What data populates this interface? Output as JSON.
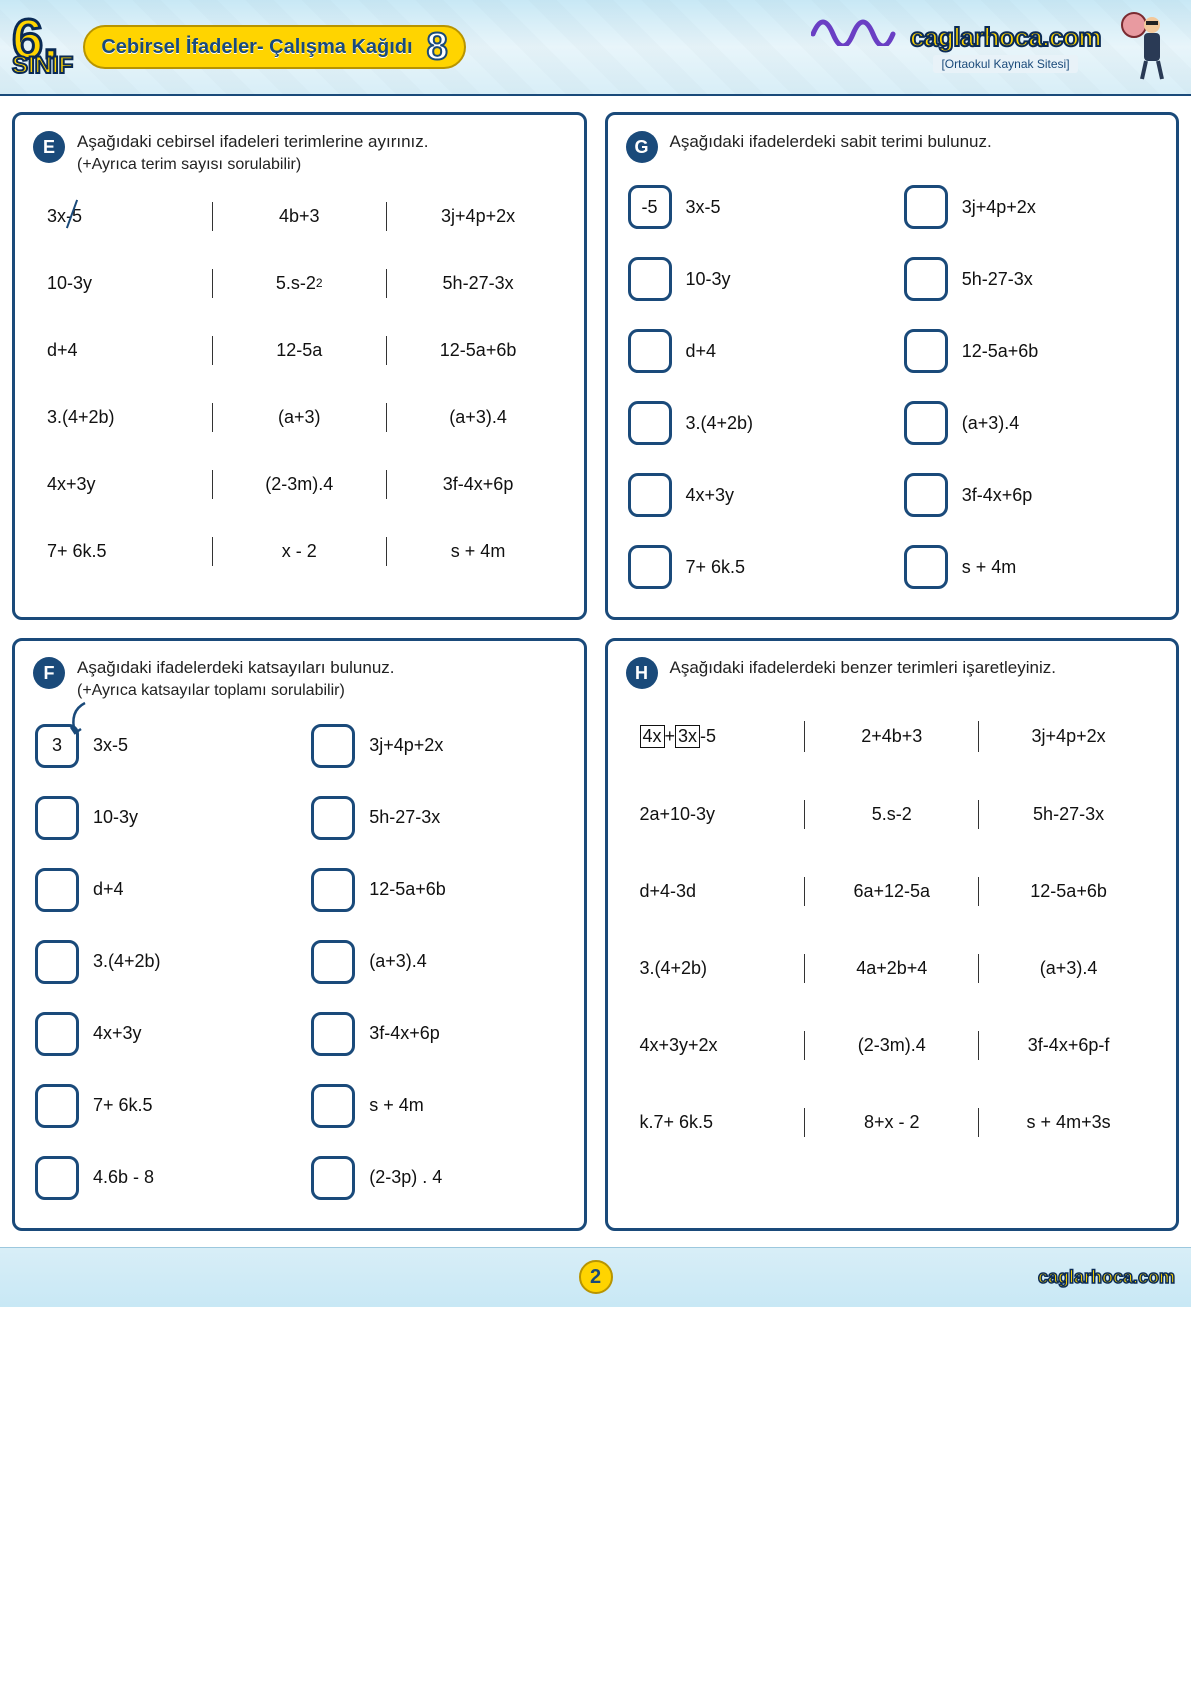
{
  "colors": {
    "primary": "#1a4a7a",
    "accent": "#ffd400",
    "text": "#111111",
    "header_bg_top": "#c8e8f5",
    "header_bg_bottom": "#d8eef7",
    "panel_border": "#1a4a7a"
  },
  "header": {
    "grade_number": "6.",
    "grade_label": "SINIF",
    "worksheet_title": "Cebirsel İfadeler- Çalışma Kağıdı",
    "worksheet_number": "8",
    "brand_name": "caglarhoca.com",
    "brand_tagline": "[Ortaokul Kaynak Sitesi]"
  },
  "panelE": {
    "badge": "E",
    "instruction": "Aşağıdaki cebirsel ifadeleri terimlerine ayırınız.",
    "sub_instruction": "(+Ayrıca terim sayısı sorulabilir)",
    "rows": [
      [
        "3x-5",
        "4b+3",
        "3j+4p+2x"
      ],
      [
        "10-3y",
        "5.s-2²",
        "5h-27-3x"
      ],
      [
        "d+4",
        "12-5a",
        "12-5a+6b"
      ],
      [
        "3.(4+2b)",
        "(a+3)",
        "(a+3).4"
      ],
      [
        "4x+3y",
        "(2-3m).4",
        "3f-4x+6p"
      ],
      [
        "7+ 6k.5",
        "x - 2",
        "s + 4m"
      ]
    ]
  },
  "panelF": {
    "badge": "F",
    "instruction": "Aşağıdaki ifadelerdeki katsayıları bulunuz.",
    "sub_instruction": "(+Ayrıca katsayılar toplamı sorulabilir)",
    "items": [
      {
        "ans": "3",
        "expr": "3x-5"
      },
      {
        "ans": "",
        "expr": "3j+4p+2x"
      },
      {
        "ans": "",
        "expr": "10-3y"
      },
      {
        "ans": "",
        "expr": "5h-27-3x"
      },
      {
        "ans": "",
        "expr": "d+4"
      },
      {
        "ans": "",
        "expr": "12-5a+6b"
      },
      {
        "ans": "",
        "expr": "3.(4+2b)"
      },
      {
        "ans": "",
        "expr": "(a+3).4"
      },
      {
        "ans": "",
        "expr": "4x+3y"
      },
      {
        "ans": "",
        "expr": "3f-4x+6p"
      },
      {
        "ans": "",
        "expr": "7+ 6k.5"
      },
      {
        "ans": "",
        "expr": "s + 4m"
      },
      {
        "ans": "",
        "expr": "4.6b - 8"
      },
      {
        "ans": "",
        "expr": "(2-3p) . 4"
      }
    ]
  },
  "panelG": {
    "badge": "G",
    "instruction": "Aşağıdaki ifadelerdeki sabit terimi bulunuz.",
    "items": [
      {
        "ans": "-5",
        "expr": "3x-5"
      },
      {
        "ans": "",
        "expr": "3j+4p+2x"
      },
      {
        "ans": "",
        "expr": "10-3y"
      },
      {
        "ans": "",
        "expr": "5h-27-3x"
      },
      {
        "ans": "",
        "expr": "d+4"
      },
      {
        "ans": "",
        "expr": "12-5a+6b"
      },
      {
        "ans": "",
        "expr": "3.(4+2b)"
      },
      {
        "ans": "",
        "expr": "(a+3).4"
      },
      {
        "ans": "",
        "expr": "4x+3y"
      },
      {
        "ans": "",
        "expr": "3f-4x+6p"
      },
      {
        "ans": "",
        "expr": "7+ 6k.5"
      },
      {
        "ans": "",
        "expr": "s + 4m"
      }
    ]
  },
  "panelH": {
    "badge": "H",
    "instruction": "Aşağıdaki ifadelerdeki benzer terimleri işaretleyiniz.",
    "rows": [
      {
        "left_html": "<span class='boxed'>4x</span>+<span class='boxed'>3x</span> -5",
        "mid": "2+4b+3",
        "right": "3j+4p+2x"
      },
      {
        "left": "2a+10-3y",
        "mid": "5.s-2",
        "right": "5h-27-3x"
      },
      {
        "left": "d+4-3d",
        "mid": "6a+12-5a",
        "right": "12-5a+6b"
      },
      {
        "left": "3.(4+2b)",
        "mid": "4a+2b+4",
        "right": "(a+3).4"
      },
      {
        "left": "4x+3y+2x",
        "mid": "(2-3m).4",
        "right": "3f-4x+6p-f"
      },
      {
        "left": "k.7+ 6k.5",
        "mid": "8+x - 2",
        "right": "s + 4m+3s"
      }
    ]
  },
  "footer": {
    "page_number": "2",
    "brand_name": "caglarhoca.com"
  }
}
